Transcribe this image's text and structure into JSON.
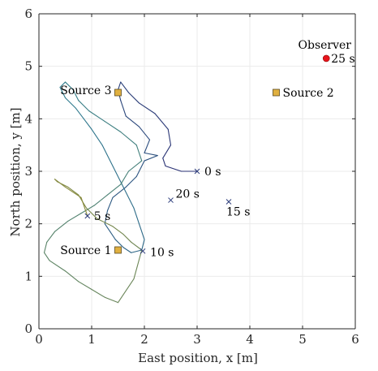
{
  "chart_data": {
    "type": "line",
    "title": "",
    "xlabel": "East position, x [m]",
    "ylabel": "North position, y [m]",
    "xlim": [
      0,
      6
    ],
    "ylim": [
      0,
      6
    ],
    "xticks": [
      "0",
      "1",
      "2",
      "3",
      "4",
      "5",
      "6"
    ],
    "yticks": [
      "0",
      "1",
      "2",
      "3",
      "4",
      "5",
      "6"
    ],
    "grid": true,
    "colors": {
      "trajectory_start": "#2a2f73",
      "trajectory_mid": "#2f7d8f",
      "trajectory_end": "#8a8a3a",
      "source": "#e0b040",
      "observer": "#e8141c",
      "grid": "#ebebeb",
      "axis": "#262626"
    },
    "series": [
      {
        "x": [
          3.0,
          2.7,
          2.4,
          2.35,
          2.5,
          2.45,
          2.2,
          1.9,
          1.7,
          1.55,
          1.5,
          1.55,
          1.65,
          1.9,
          2.1,
          2.0,
          2.25,
          2.0,
          1.85,
          1.65,
          1.4,
          1.3,
          1.25,
          1.35,
          1.45,
          1.6,
          1.75,
          1.95,
          2.0,
          1.9,
          1.8,
          1.6,
          1.4,
          1.2,
          1.0,
          0.85,
          0.7,
          0.5,
          0.4,
          0.5,
          0.65,
          0.75,
          0.95,
          1.25,
          1.55,
          1.85,
          1.95,
          1.7,
          1.55,
          1.3,
          1.05,
          0.8,
          0.55,
          0.3,
          0.15,
          0.1,
          0.2,
          0.5,
          0.75,
          1.0,
          1.25,
          1.5,
          1.8,
          1.95,
          1.75,
          1.6,
          1.4,
          1.1,
          0.9,
          0.75,
          0.55,
          0.35,
          0.3,
          0.5,
          0.8,
          0.92
        ],
        "y": [
          3.0,
          3.0,
          3.1,
          3.25,
          3.5,
          3.8,
          4.1,
          4.3,
          4.5,
          4.7,
          4.55,
          4.35,
          4.05,
          3.85,
          3.6,
          3.35,
          3.3,
          3.2,
          2.9,
          2.7,
          2.5,
          2.25,
          2.0,
          1.85,
          1.7,
          1.55,
          1.45,
          1.5,
          1.7,
          2.0,
          2.3,
          2.7,
          3.1,
          3.5,
          3.8,
          4.0,
          4.2,
          4.4,
          4.6,
          4.7,
          4.55,
          4.35,
          4.15,
          3.95,
          3.75,
          3.5,
          3.2,
          3.0,
          2.75,
          2.55,
          2.35,
          2.2,
          2.05,
          1.85,
          1.65,
          1.45,
          1.3,
          1.1,
          0.9,
          0.75,
          0.6,
          0.5,
          0.95,
          1.5,
          1.65,
          1.8,
          1.95,
          2.1,
          2.3,
          2.55,
          2.7,
          2.8,
          2.85,
          2.7,
          2.5,
          2.15
        ]
      }
    ],
    "sources": [
      {
        "label": "Source 1",
        "x": 1.5,
        "y": 1.5
      },
      {
        "label": "Source 2",
        "x": 4.5,
        "y": 4.5
      },
      {
        "label": "Source 3",
        "x": 1.5,
        "y": 4.5
      }
    ],
    "observer": {
      "label": "Observer",
      "x": 5.45,
      "y": 5.15
    },
    "time_markers": [
      {
        "label": "0 s",
        "x": 3.0,
        "y": 3.0
      },
      {
        "label": "5 s",
        "x": 0.92,
        "y": 2.15
      },
      {
        "label": "10 s",
        "x": 1.97,
        "y": 1.48
      },
      {
        "label": "15 s",
        "x": 3.6,
        "y": 2.42
      },
      {
        "label": "20 s",
        "x": 2.5,
        "y": 2.45
      },
      {
        "label": "25 s",
        "x": 5.45,
        "y": 5.15
      }
    ]
  }
}
